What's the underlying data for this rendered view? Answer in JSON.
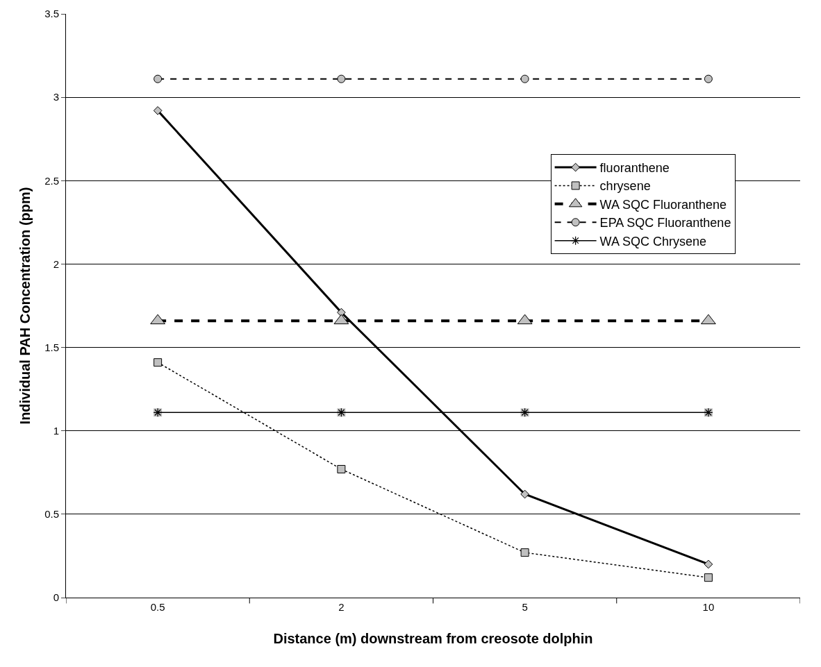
{
  "chart_data": {
    "type": "line",
    "xlabel": "Distance (m) downstream from creosote dolphin",
    "ylabel": "Individual PAH Concentration (ppm)",
    "categories": [
      "0.5",
      "2",
      "5",
      "10"
    ],
    "series": [
      {
        "name": "fluoranthene",
        "color": "#000000",
        "marker": "diamond",
        "line_style": "solid",
        "values": [
          2.92,
          1.71,
          0.62,
          0.2
        ]
      },
      {
        "name": "chrysene",
        "color": "#000000",
        "marker": "square",
        "line_style": "dotted",
        "values": [
          1.41,
          0.77,
          0.27,
          0.12
        ]
      },
      {
        "name": "WA SQC Fluoranthene",
        "color": "#000000",
        "marker": "triangle",
        "line_style": "dashed",
        "values": [
          1.66,
          1.66,
          1.66,
          1.66
        ]
      },
      {
        "name": "EPA SQC Fluoranthene",
        "color": "#000000",
        "marker": "circle",
        "line_style": "dashed",
        "values": [
          3.11,
          3.11,
          3.11,
          3.11
        ]
      },
      {
        "name": "WA SQC Chrysene",
        "color": "#000000",
        "marker": "cross",
        "line_style": "solid",
        "values": [
          1.11,
          1.11,
          1.11,
          1.11
        ]
      }
    ],
    "ylim": [
      0,
      3.5
    ],
    "yticks": [
      0,
      0.5,
      1,
      1.5,
      2,
      2.5,
      3,
      3.5
    ],
    "grid": "y",
    "legend": "right"
  }
}
